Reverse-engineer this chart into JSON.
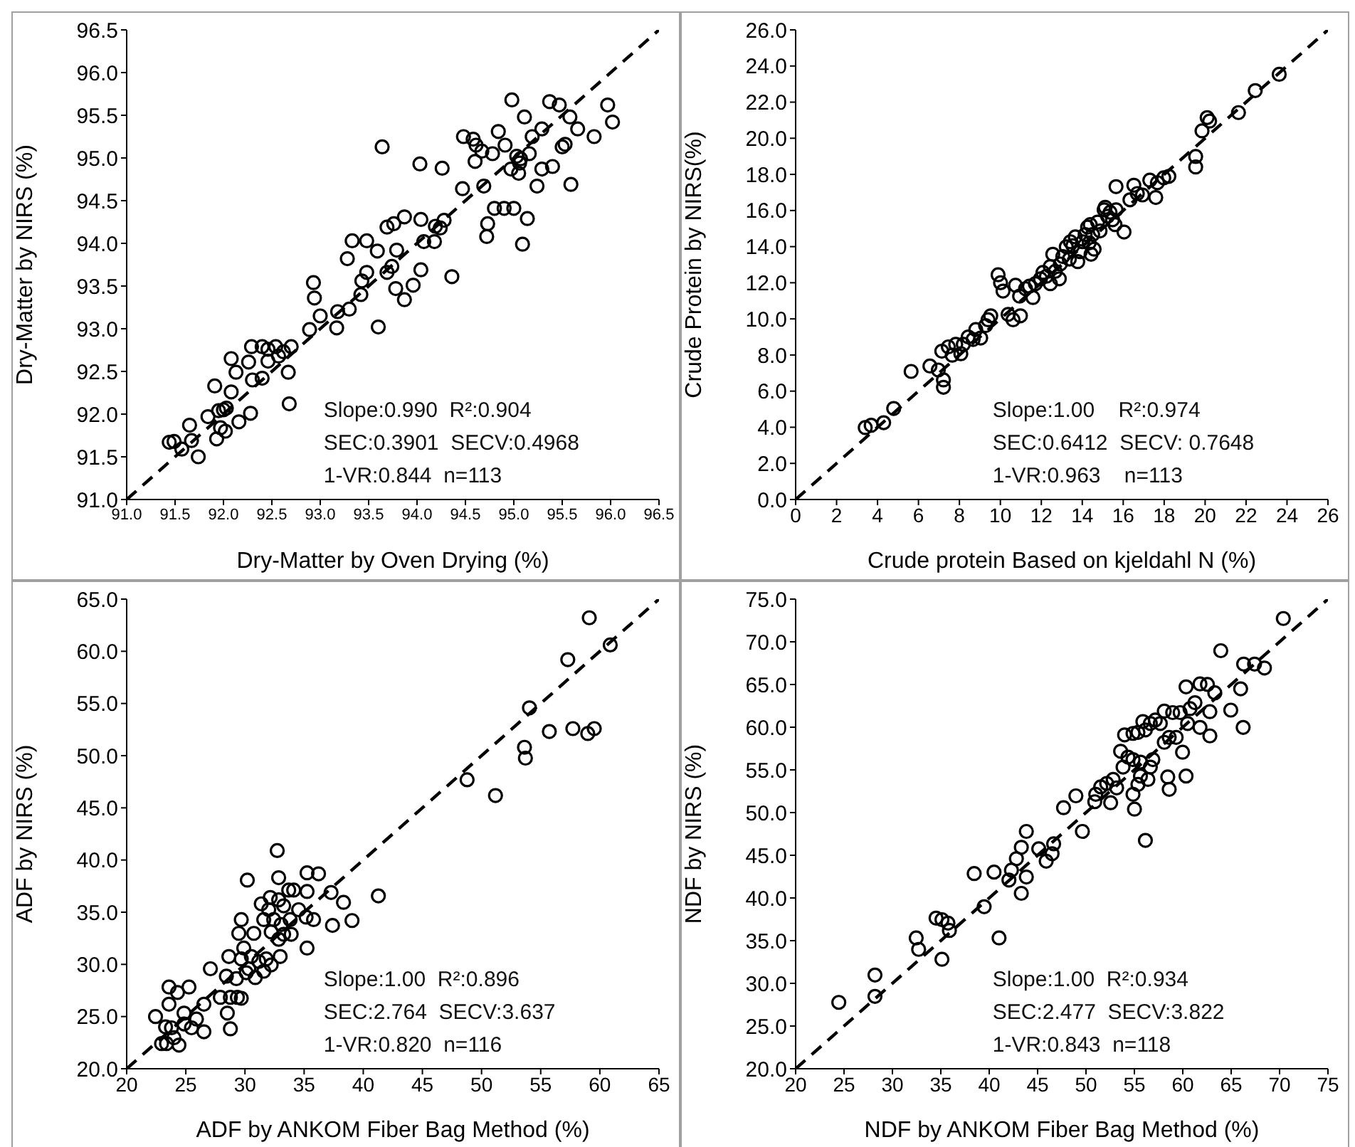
{
  "chart_data": [
    {
      "type": "scatter",
      "xlabel": "Dry-Matter by Oven Drying (%)",
      "ylabel": "Dry-Matter by NIRS (%)",
      "xlim": [
        91,
        96.5
      ],
      "ylim": [
        91,
        96.5
      ],
      "xticks": [
        {
          "value": 91,
          "label": "91.0"
        },
        {
          "value": 91.5,
          "label": "91.5"
        },
        {
          "value": 92,
          "label": "92.0"
        },
        {
          "value": 92.5,
          "label": "92.5"
        },
        {
          "value": 93,
          "label": "93.0"
        },
        {
          "value": 93.5,
          "label": "93.5"
        },
        {
          "value": 94,
          "label": "94.0"
        },
        {
          "value": 94.5,
          "label": "94.5"
        },
        {
          "value": 95,
          "label": "95.0"
        },
        {
          "value": 95.5,
          "label": "95.5"
        },
        {
          "value": 96,
          "label": "96.0"
        },
        {
          "value": 96.5,
          "label": "96.5"
        }
      ],
      "yticks": [
        {
          "value": 91,
          "label": "91.0"
        },
        {
          "value": 91.5,
          "label": "91.5"
        },
        {
          "value": 92,
          "label": "92.0"
        },
        {
          "value": 92.5,
          "label": "92.5"
        },
        {
          "value": 93,
          "label": "93.0"
        },
        {
          "value": 93.5,
          "label": "93.5"
        },
        {
          "value": 94,
          "label": "94.0"
        },
        {
          "value": 94.5,
          "label": "94.5"
        },
        {
          "value": 95,
          "label": "95.0"
        },
        {
          "value": 95.5,
          "label": "95.5"
        },
        {
          "value": 96,
          "label": "96.0"
        },
        {
          "value": 96.5,
          "label": "96.5"
        }
      ],
      "annotations": [
        "Slope:0.990  R²:0.904",
        "SEC:0.3901  SECV:0.4968",
        "1-VR:0.844  n=113"
      ],
      "series": [
        {
          "type": "line",
          "color": "#000000",
          "line_style": "dashed",
          "x": [
            91,
            96.5
          ],
          "values": [
            91,
            96.5
          ]
        },
        {
          "color": "#000000",
          "marker": "circle",
          "x": [
            91.44,
            91.49,
            91.57,
            91.65,
            91.67,
            91.74,
            91.84,
            91.91,
            91.93,
            91.95,
            91.97,
            92.0,
            92.02,
            92.03,
            92.08,
            92.08,
            92.13,
            92.16,
            92.26,
            92.28,
            92.3,
            92.4,
            92.29,
            92.4,
            92.46,
            92.46,
            92.54,
            92.57,
            92.62,
            92.67,
            92.68,
            92.7,
            92.89,
            92.93,
            92.94,
            93.0,
            93.17,
            93.18,
            93.3,
            93.28,
            93.33,
            93.42,
            93.43,
            93.48,
            93.48,
            93.6,
            93.59,
            93.64,
            93.69,
            93.74,
            93.78,
            93.79,
            93.69,
            93.76,
            93.87,
            93.87,
            93.96,
            94.03,
            94.04,
            94.04,
            94.07,
            94.18,
            94.19,
            94.24,
            94.26,
            94.28,
            94.36,
            94.47,
            94.48,
            94.58,
            94.6,
            94.61,
            94.67,
            94.69,
            94.73,
            94.72,
            94.78,
            94.8,
            94.84,
            94.9,
            94.91,
            94.98,
            95.0,
            94.97,
            95.05,
            95.06,
            95.07,
            95.09,
            95.11,
            95.14,
            95.19,
            95.24,
            95.29,
            95.29,
            95.37,
            95.4,
            95.47,
            95.5,
            95.53,
            95.58,
            95.59,
            95.66,
            95.83,
            95.97,
            96.02,
            95.03,
            95.16
          ],
          "values": [
            91.67,
            91.68,
            91.59,
            91.87,
            91.69,
            91.5,
            91.97,
            92.33,
            91.71,
            92.04,
            91.84,
            92.05,
            91.8,
            92.07,
            92.26,
            92.65,
            92.49,
            91.91,
            92.61,
            92.01,
            92.4,
            92.42,
            92.79,
            92.79,
            92.62,
            92.76,
            92.79,
            92.68,
            92.73,
            92.49,
            92.12,
            92.79,
            92.99,
            93.54,
            93.36,
            93.15,
            93.01,
            93.2,
            93.23,
            93.82,
            94.03,
            93.4,
            93.56,
            93.66,
            94.03,
            93.02,
            93.91,
            95.13,
            93.66,
            93.73,
            93.47,
            93.92,
            94.19,
            94.23,
            94.31,
            93.34,
            93.51,
            94.93,
            93.69,
            94.28,
            94.02,
            94.02,
            94.2,
            94.18,
            94.88,
            94.27,
            93.61,
            94.64,
            95.25,
            95.22,
            94.96,
            95.15,
            95.08,
            94.67,
            94.23,
            94.08,
            95.05,
            94.41,
            95.31,
            94.41,
            95.15,
            95.68,
            94.41,
            94.87,
            94.82,
            94.94,
            94.99,
            93.99,
            95.48,
            94.29,
            95.25,
            94.67,
            94.87,
            95.34,
            95.66,
            94.9,
            95.62,
            95.13,
            95.16,
            95.48,
            94.69,
            95.34,
            95.25,
            95.62,
            95.42,
            95.02,
            95.05
          ]
        }
      ]
    },
    {
      "type": "scatter",
      "xlabel": "Crude protein Based on kjeldahl N (%)",
      "ylabel": "Crude Protein by NIRS(%)",
      "xlim": [
        0,
        26
      ],
      "ylim": [
        0,
        26
      ],
      "xticks": [
        0,
        2,
        4,
        6,
        8,
        10,
        12,
        14,
        16,
        18,
        20,
        22,
        24,
        26
      ],
      "yticks": [
        {
          "value": 0,
          "label": "0.0"
        },
        {
          "value": 2,
          "label": "2.0"
        },
        {
          "value": 4,
          "label": "4.0"
        },
        {
          "value": 6,
          "label": "6.0"
        },
        {
          "value": 8,
          "label": "8.0"
        },
        {
          "value": 10,
          "label": "10.0"
        },
        {
          "value": 12,
          "label": "12.0"
        },
        {
          "value": 14,
          "label": "14.0"
        },
        {
          "value": 16,
          "label": "16.0"
        },
        {
          "value": 18,
          "label": "18.0"
        },
        {
          "value": 20,
          "label": "20.0"
        },
        {
          "value": 22,
          "label": "22.0"
        },
        {
          "value": 24,
          "label": "24.0"
        },
        {
          "value": 26,
          "label": "26.0"
        }
      ],
      "annotations": [
        "Slope:1.00    R²:0.974",
        "SEC:0.6412  SECV: 0.7648",
        "1-VR:0.963    n=113"
      ],
      "series": [
        {
          "type": "line",
          "color": "#000000",
          "line_style": "dashed",
          "x": [
            0,
            26
          ],
          "values": [
            0,
            26
          ]
        },
        {
          "color": "#000000",
          "marker": "circle",
          "x": [
            3.4,
            3.69,
            4.3,
            4.79,
            5.64,
            6.56,
            6.97,
            7.22,
            7.22,
            7.14,
            7.46,
            7.65,
            7.82,
            8.07,
            8.19,
            8.43,
            8.67,
            8.8,
            9.04,
            9.28,
            9.4,
            9.53,
            9.89,
            10.01,
            10.13,
            10.38,
            10.62,
            10.98,
            10.74,
            10.94,
            11.23,
            11.42,
            11.59,
            11.71,
            11.96,
            12.08,
            12.25,
            12.44,
            12.56,
            12.68,
            12.88,
            12.93,
            13.05,
            13.22,
            13.37,
            13.54,
            13.66,
            13.78,
            13.9,
            14.02,
            14.14,
            14.26,
            14.34,
            14.43,
            14.51,
            14.58,
            14.75,
            14.87,
            15.07,
            15.24,
            15.36,
            15.48,
            15.6,
            15.65,
            16.04,
            15.65,
            16.33,
            16.52,
            16.69,
            16.94,
            17.3,
            17.59,
            17.67,
            17.98,
            18.23,
            19.54,
            19.54,
            19.85,
            20.1,
            20.22,
            21.63,
            22.45,
            23.62,
            12.44,
            13.42,
            14.39,
            15.12
          ],
          "values": [
            3.98,
            4.11,
            4.25,
            5.04,
            7.09,
            7.39,
            7.17,
            6.62,
            6.21,
            8.21,
            8.45,
            7.99,
            8.59,
            8.07,
            8.59,
            9.0,
            8.86,
            9.41,
            8.94,
            9.63,
            9.95,
            10.17,
            12.44,
            12.0,
            11.54,
            10.25,
            9.95,
            10.17,
            11.86,
            11.26,
            11.67,
            11.81,
            11.18,
            11.95,
            12.22,
            12.57,
            12.36,
            12.9,
            13.58,
            12.63,
            12.22,
            13.04,
            13.45,
            13.99,
            13.31,
            14.05,
            14.54,
            13.17,
            13.72,
            14.27,
            14.67,
            15.08,
            14.21,
            13.58,
            14.67,
            13.86,
            15.36,
            14.87,
            16.04,
            15.68,
            15.9,
            15.49,
            15.22,
            16.04,
            14.81,
            17.32,
            16.59,
            17.4,
            16.94,
            16.86,
            17.68,
            16.72,
            17.54,
            17.81,
            17.89,
            18.99,
            18.41,
            20.41,
            21.14,
            20.95,
            21.42,
            22.64,
            23.54,
            11.95,
            14.27,
            15.22,
            16.18
          ]
        }
      ]
    },
    {
      "type": "scatter",
      "xlabel": "ADF by ANKOM Fiber Bag Method (%)",
      "ylabel": "ADF by NIRS (%)",
      "xlim": [
        20,
        65
      ],
      "ylim": [
        20,
        65
      ],
      "xticks": [
        20,
        25,
        30,
        35,
        40,
        45,
        50,
        55,
        60,
        65
      ],
      "yticks": [
        {
          "value": 20,
          "label": "20.0"
        },
        {
          "value": 25,
          "label": "25.0"
        },
        {
          "value": 30,
          "label": "30.0"
        },
        {
          "value": 35,
          "label": "35.0"
        },
        {
          "value": 40,
          "label": "40.0"
        },
        {
          "value": 45,
          "label": "45.0"
        },
        {
          "value": 50,
          "label": "50.0"
        },
        {
          "value": 55,
          "label": "55.0"
        },
        {
          "value": 60,
          "label": "60.0"
        },
        {
          "value": 65,
          "label": "65.0"
        }
      ],
      "annotations": [
        "Slope:1.00  R²:0.896",
        "SEC:2.764  SECV:3.637",
        "1-VR:0.820  n=116"
      ],
      "series": [
        {
          "type": "line",
          "color": "#000000",
          "line_style": "dashed",
          "x": [
            20,
            65
          ],
          "values": [
            20,
            65
          ]
        },
        {
          "color": "#000000",
          "marker": "circle",
          "x": [
            59.11,
            60.88,
            57.29,
            54.05,
            55.73,
            57.72,
            58.98,
            59.53,
            53.63,
            53.71,
            48.78,
            51.18,
            32.73,
            30.2,
            32.85,
            35.25,
            36.22,
            34.12,
            33.7,
            35.25,
            37.28,
            38.33,
            41.28,
            31.38,
            32.14,
            32.01,
            32.85,
            33.27,
            29.69,
            30.75,
            31.59,
            32.43,
            33.06,
            33.82,
            34.54,
            33.91,
            35.17,
            35.8,
            37.4,
            39.05,
            29.48,
            32.22,
            32.85,
            33.27,
            32.98,
            35.25,
            29.9,
            29.69,
            30.54,
            31.17,
            31.8,
            30.32,
            30.87,
            31.59,
            32.22,
            27.08,
            28.64,
            28.43,
            29.27,
            30.11,
            27.92,
            28.77,
            29.36,
            29.69,
            26.53,
            28.51,
            28.77,
            23.58,
            24.3,
            25.27,
            23.58,
            22.44,
            24.85,
            25.9,
            25.48,
            26.53,
            23.29,
            23.79,
            22.95,
            23.37,
            24.42,
            24.0,
            24.85
          ],
          "values": [
            63.21,
            60.61,
            59.2,
            54.58,
            52.31,
            52.59,
            52.12,
            52.59,
            50.8,
            49.76,
            47.69,
            46.18,
            40.9,
            38.07,
            38.3,
            38.77,
            38.68,
            37.12,
            37.12,
            36.98,
            36.89,
            35.94,
            36.56,
            35.8,
            36.41,
            35.24,
            36.18,
            35.61,
            34.29,
            32.97,
            34.29,
            34.29,
            33.82,
            34.29,
            35.24,
            32.88,
            34.53,
            34.29,
            33.73,
            34.2,
            32.97,
            33.11,
            32.4,
            32.88,
            30.75,
            31.56,
            31.56,
            30.52,
            30.75,
            30.28,
            30.52,
            29.58,
            28.73,
            29.34,
            29.95,
            29.58,
            30.75,
            28.87,
            28.63,
            29.2,
            26.84,
            26.84,
            26.84,
            26.75,
            26.18,
            25.33,
            23.82,
            27.83,
            27.31,
            27.83,
            26.18,
            25.0,
            25.33,
            24.76,
            23.92,
            23.54,
            24.01,
            23.92,
            22.41,
            22.41,
            22.26,
            22.97,
            24.29
          ]
        }
      ]
    },
    {
      "type": "scatter",
      "xlabel": "NDF by ANKOM Fiber Bag Method (%)",
      "ylabel": "NDF by NIRS (%)",
      "xlim": [
        20,
        75
      ],
      "ylim": [
        20,
        75
      ],
      "xticks": [
        20,
        25,
        30,
        35,
        40,
        45,
        50,
        55,
        60,
        65,
        70,
        75
      ],
      "yticks": [
        {
          "value": 20,
          "label": "20.0"
        },
        {
          "value": 25,
          "label": "25.0"
        },
        {
          "value": 30,
          "label": "30.0"
        },
        {
          "value": 35,
          "label": "35.0"
        },
        {
          "value": 40,
          "label": "40.0"
        },
        {
          "value": 45,
          "label": "45.0"
        },
        {
          "value": 50,
          "label": "50.0"
        },
        {
          "value": 55,
          "label": "55.0"
        },
        {
          "value": 60,
          "label": "60.0"
        },
        {
          "value": 65,
          "label": "65.0"
        },
        {
          "value": 70,
          "label": "70.0"
        },
        {
          "value": 75,
          "label": "75.0"
        }
      ],
      "annotations": [
        "Slope:1.00  R²:0.934",
        "SEC:2.477  SECV:3.822",
        "1-VR:0.843  n=118"
      ],
      "series": [
        {
          "type": "line",
          "color": "#000000",
          "line_style": "dashed",
          "x": [
            20,
            75
          ],
          "values": [
            20,
            75
          ]
        },
        {
          "color": "#000000",
          "marker": "circle",
          "x": [
            70.39,
            63.93,
            66.29,
            67.42,
            68.44,
            65.98,
            64.96,
            66.24,
            60.34,
            61.78,
            62.55,
            63.31,
            62.8,
            61.78,
            62.8,
            59.73,
            60.75,
            61.26,
            60.5,
            58.96,
            58.09,
            57.68,
            57.16,
            56.65,
            56.14,
            55.88,
            55.37,
            54.86,
            53.99,
            58.09,
            58.6,
            59.32,
            59.98,
            60.34,
            58.45,
            58.6,
            56.91,
            56.65,
            56.4,
            55.63,
            54.86,
            54.34,
            53.83,
            53.58,
            55.63,
            55.37,
            54.86,
            55.01,
            56.14,
            52.81,
            53.17,
            52.14,
            51.52,
            51.01,
            52.55,
            50.91,
            48.96,
            47.68,
            49.63,
            46.66,
            46.5,
            45.89,
            45.12,
            43.84,
            43.32,
            42.81,
            43.84,
            43.32,
            42.04,
            42.3,
            40.5,
            38.45,
            39.48,
            41.02,
            35.12,
            34.51,
            35.74,
            35.89,
            35.12,
            32.46,
            32.71,
            28.2,
            28.2,
            24.46
          ],
          "values": [
            72.73,
            68.96,
            67.39,
            67.39,
            66.93,
            64.49,
            62.0,
            59.97,
            64.72,
            65.07,
            65.01,
            64.03,
            61.82,
            59.97,
            58.98,
            61.71,
            62.17,
            62.87,
            60.43,
            61.71,
            61.88,
            60.43,
            60.84,
            60.43,
            59.68,
            60.66,
            59.39,
            59.27,
            59.1,
            58.23,
            58.81,
            58.81,
            57.07,
            54.28,
            54.17,
            52.72,
            56.2,
            55.33,
            53.88,
            55.91,
            56.2,
            56.49,
            55.33,
            57.18,
            54.28,
            53.3,
            52.14,
            50.4,
            46.74,
            53.88,
            52.89,
            53.41,
            53.01,
            52.14,
            51.15,
            51.27,
            51.96,
            50.57,
            47.79,
            46.34,
            45.18,
            44.31,
            45.76,
            47.79,
            45.93,
            44.6,
            42.45,
            40.54,
            42.1,
            43.26,
            43.03,
            42.86,
            38.97,
            35.32,
            37.46,
            37.64,
            37.06,
            36.19,
            32.82,
            35.32,
            33.98,
            30.97,
            28.47,
            27.77
          ]
        }
      ]
    }
  ]
}
